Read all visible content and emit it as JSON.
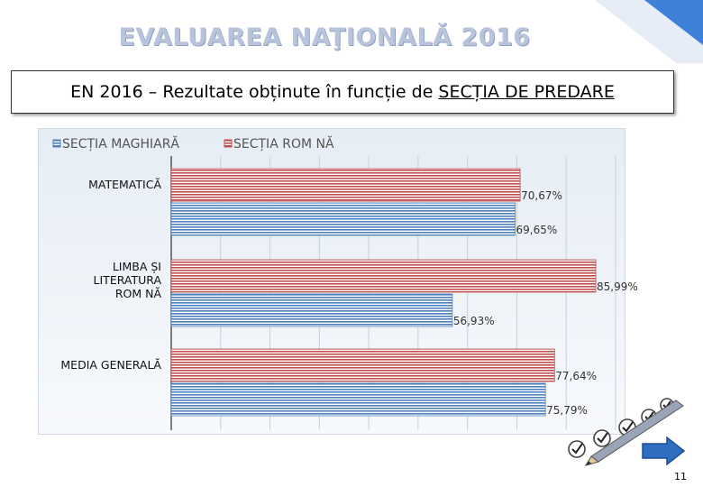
{
  "slide": {
    "title": "EVALUAREA NAŢIONALĂ 2016",
    "subtitle_prefix": "EN 2016 – Rezultate obținute în funcție de",
    "subtitle_underlined": "SECȚIA DE PREDARE",
    "page_number": "11"
  },
  "colors": {
    "maghiara": "#4f81bd",
    "romana": "#c0504d",
    "title": "#b7c4db"
  },
  "chart_data": {
    "type": "bar",
    "orientation": "horizontal",
    "categories": [
      "MATEMATICĂ",
      "LIMBA ȘI LITERATURA ROM NĂ",
      "MEDIA GENERALĂ"
    ],
    "category_lines": [
      [
        "MATEMATICĂ"
      ],
      [
        "LIMBA ȘI",
        "LITERATURA",
        "ROM NĂ"
      ],
      [
        "MEDIA GENERALĂ"
      ]
    ],
    "series": [
      {
        "name": "SECȚIA ROM NĂ",
        "values": [
          70.67,
          85.99,
          77.64
        ],
        "labels": [
          "70,67%",
          "85,99%",
          "77,64%"
        ]
      },
      {
        "name": "SECȚIA MAGHIARĂ",
        "values": [
          69.65,
          56.93,
          75.79
        ],
        "labels": [
          "69,65%",
          "56,93%",
          "75,79%"
        ]
      }
    ],
    "legend": [
      "SECȚIA MAGHIARĂ",
      "SECȚIA ROM NĂ"
    ],
    "legend_position": "top",
    "xlim": [
      0,
      90
    ],
    "grid": true
  }
}
